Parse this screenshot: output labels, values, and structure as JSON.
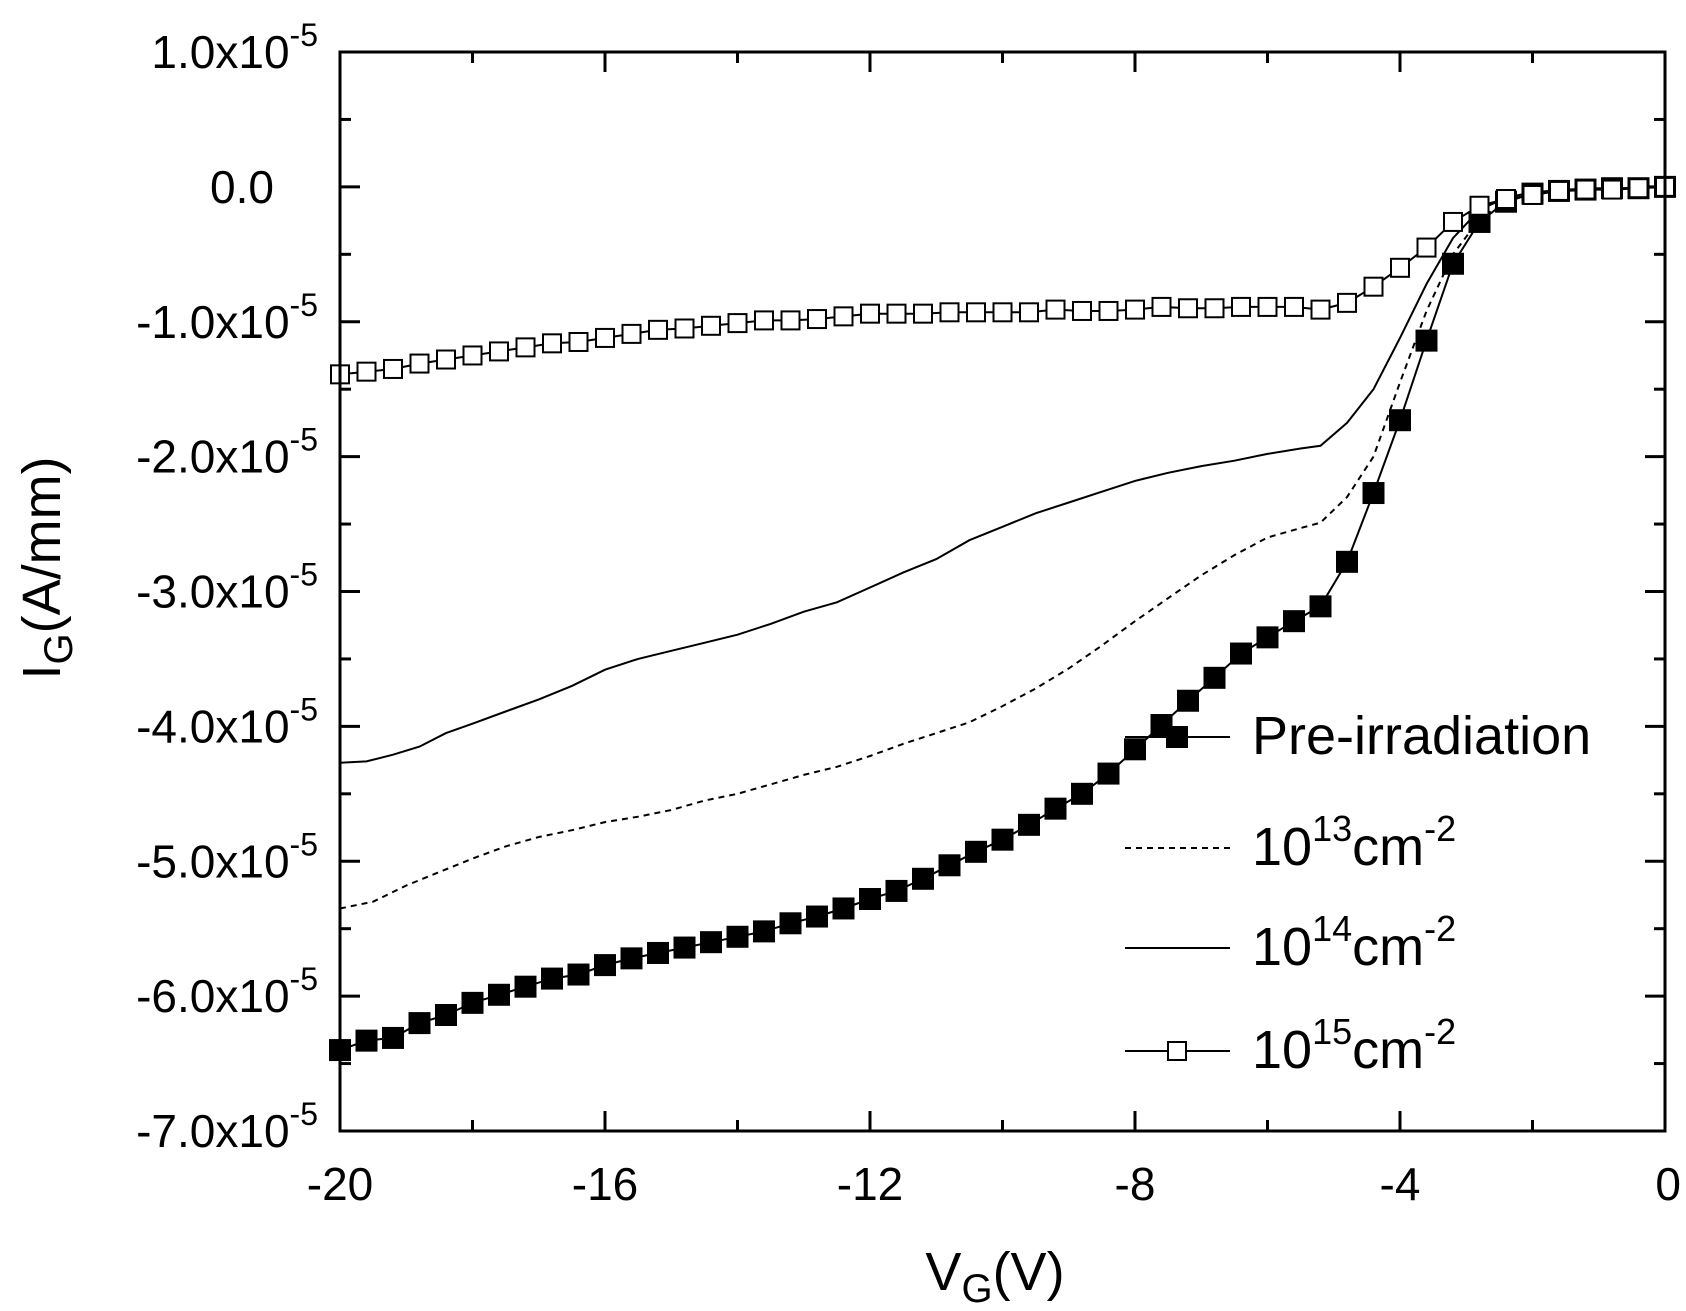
{
  "chart_data": {
    "type": "line",
    "title": "",
    "xlabel": {
      "main": "V",
      "sub": "G",
      "rest": "(V)"
    },
    "ylabel": {
      "main": "I",
      "sub": "G",
      "rest": "(A/mm)"
    },
    "xlim": [
      -20,
      0
    ],
    "ylim": [
      -7e-05,
      1e-05
    ],
    "x_ticks": [
      {
        "value": -20,
        "label": "-20"
      },
      {
        "value": -16,
        "label": "-16"
      },
      {
        "value": -12,
        "label": "-12"
      },
      {
        "value": -8,
        "label": "-8"
      },
      {
        "value": -4,
        "label": "-4"
      },
      {
        "value": 0,
        "label": "0"
      }
    ],
    "y_ticks": [
      {
        "value": 1e-05,
        "mantissa": "1.0x10",
        "exp": "-5"
      },
      {
        "value": 0,
        "mantissa": "0.0",
        "exp": ""
      },
      {
        "value": -1e-05,
        "mantissa": "-1.0x10",
        "exp": "-5"
      },
      {
        "value": -2e-05,
        "mantissa": "-2.0x10",
        "exp": "-5"
      },
      {
        "value": -3e-05,
        "mantissa": "-3.0x10",
        "exp": "-5"
      },
      {
        "value": -4e-05,
        "mantissa": "-4.0x10",
        "exp": "-5"
      },
      {
        "value": -5e-05,
        "mantissa": "-5.0x10",
        "exp": "-5"
      },
      {
        "value": -6e-05,
        "mantissa": "-6.0x10",
        "exp": "-5"
      },
      {
        "value": -7e-05,
        "mantissa": "-7.0x10",
        "exp": "-5"
      }
    ],
    "legend_position": "bottom-right",
    "series": [
      {
        "name": "Pre-irradiation",
        "legend": {
          "text": "Pre-irradiation",
          "base": "",
          "exp": "",
          "unit": ""
        },
        "style": "filled-square",
        "color": "#000000",
        "x": [
          -20,
          -19.6,
          -19.2,
          -18.8,
          -18.4,
          -18,
          -17.6,
          -17.2,
          -16.8,
          -16.4,
          -16,
          -15.6,
          -15.2,
          -14.8,
          -14.4,
          -14,
          -13.6,
          -13.2,
          -12.8,
          -12.4,
          -12,
          -11.6,
          -11.2,
          -10.8,
          -10.4,
          -10,
          -9.6,
          -9.2,
          -8.8,
          -8.4,
          -8,
          -7.6,
          -7.2,
          -6.8,
          -6.4,
          -6,
          -5.6,
          -5.2,
          -4.8,
          -4.4,
          -4,
          -3.6,
          -3.2,
          -2.8,
          -2.4,
          -2,
          -1.6,
          -1.2,
          -0.8,
          -0.4,
          0
        ],
        "y": [
          -6.4e-05,
          -6.33e-05,
          -6.31e-05,
          -6.2e-05,
          -6.14e-05,
          -6.05e-05,
          -5.99e-05,
          -5.93e-05,
          -5.87e-05,
          -5.84e-05,
          -5.77e-05,
          -5.72e-05,
          -5.68e-05,
          -5.64e-05,
          -5.6e-05,
          -5.56e-05,
          -5.52e-05,
          -5.46e-05,
          -5.41e-05,
          -5.35e-05,
          -5.28e-05,
          -5.22e-05,
          -5.13e-05,
          -5.03e-05,
          -4.93e-05,
          -4.84e-05,
          -4.73e-05,
          -4.61e-05,
          -4.5e-05,
          -4.35e-05,
          -4.17e-05,
          -3.99e-05,
          -3.81e-05,
          -3.64e-05,
          -3.46e-05,
          -3.34e-05,
          -3.22e-05,
          -3.11e-05,
          -2.78e-05,
          -2.27e-05,
          -1.73e-05,
          -1.14e-05,
          -5.7e-06,
          -2.6e-06,
          -1.1e-06,
          -5e-07,
          -3e-07,
          -2e-07,
          -1e-07,
          -1e-07,
          0
        ]
      },
      {
        "name": "10^13 cm^-2",
        "legend": {
          "text": "",
          "base": "10",
          "exp": "13",
          "unit": "cm",
          "unit_exp": "-2"
        },
        "style": "dashed",
        "color": "#000000",
        "x": [
          -20,
          -19.5,
          -19,
          -18.5,
          -18,
          -17.5,
          -17,
          -16.5,
          -16,
          -15.5,
          -15,
          -14.5,
          -14,
          -13.5,
          -13,
          -12.5,
          -12,
          -11.5,
          -11,
          -10.5,
          -10,
          -9.5,
          -9,
          -8.5,
          -8,
          -7.5,
          -7,
          -6.5,
          -6,
          -5.5,
          -5.2,
          -4.8,
          -4.4,
          -4,
          -3.6,
          -3.2,
          -2.8,
          -2.4,
          -2,
          -1.5,
          -1,
          -0.5,
          0
        ],
        "y": [
          -5.35e-05,
          -5.3e-05,
          -5.18e-05,
          -5.08e-05,
          -4.98e-05,
          -4.89e-05,
          -4.82e-05,
          -4.77e-05,
          -4.71e-05,
          -4.67e-05,
          -4.62e-05,
          -4.55e-05,
          -4.5e-05,
          -4.43e-05,
          -4.36e-05,
          -4.3e-05,
          -4.22e-05,
          -4.13e-05,
          -4.05e-05,
          -3.97e-05,
          -3.85e-05,
          -3.72e-05,
          -3.57e-05,
          -3.4e-05,
          -3.22e-05,
          -3.05e-05,
          -2.88e-05,
          -2.73e-05,
          -2.6e-05,
          -2.53e-05,
          -2.49e-05,
          -2.3e-05,
          -2e-05,
          -1.45e-05,
          -9.2e-06,
          -5e-06,
          -2.4e-06,
          -1.1e-06,
          -5e-07,
          -3e-07,
          -2e-07,
          -1e-07,
          0
        ]
      },
      {
        "name": "10^14 cm^-2",
        "legend": {
          "text": "",
          "base": "10",
          "exp": "14",
          "unit": "cm",
          "unit_exp": "-2"
        },
        "style": "solid",
        "color": "#000000",
        "x": [
          -20,
          -19.6,
          -19.2,
          -18.8,
          -18.4,
          -18,
          -17.5,
          -17,
          -16.5,
          -16,
          -15.5,
          -15,
          -14.5,
          -14,
          -13.5,
          -13,
          -12.5,
          -12,
          -11.5,
          -11,
          -10.5,
          -10,
          -9.5,
          -9,
          -8.5,
          -8,
          -7.5,
          -7,
          -6.5,
          -6,
          -5.5,
          -5.2,
          -4.8,
          -4.4,
          -4,
          -3.6,
          -3.2,
          -2.8,
          -2.4,
          -2,
          -1.5,
          -1,
          -0.5,
          0
        ],
        "y": [
          -4.27e-05,
          -4.26e-05,
          -4.21e-05,
          -4.15e-05,
          -4.05e-05,
          -3.98e-05,
          -3.89e-05,
          -3.8e-05,
          -3.7e-05,
          -3.58e-05,
          -3.5e-05,
          -3.44e-05,
          -3.38e-05,
          -3.32e-05,
          -3.24e-05,
          -3.15e-05,
          -3.08e-05,
          -2.97e-05,
          -2.86e-05,
          -2.76e-05,
          -2.62e-05,
          -2.52e-05,
          -2.42e-05,
          -2.34e-05,
          -2.26e-05,
          -2.18e-05,
          -2.12e-05,
          -2.07e-05,
          -2.03e-05,
          -1.98e-05,
          -1.94e-05,
          -1.92e-05,
          -1.75e-05,
          -1.5e-05,
          -1.12e-05,
          -7.2e-06,
          -3.8e-06,
          -1.7e-06,
          -8e-07,
          -4e-07,
          -2e-07,
          -1e-07,
          -1e-07,
          0
        ]
      },
      {
        "name": "10^15 cm^-2",
        "legend": {
          "text": "",
          "base": "10",
          "exp": "15",
          "unit": "cm",
          "unit_exp": "-2"
        },
        "style": "open-square",
        "color": "#000000",
        "x": [
          -20,
          -19.6,
          -19.2,
          -18.8,
          -18.4,
          -18,
          -17.6,
          -17.2,
          -16.8,
          -16.4,
          -16,
          -15.6,
          -15.2,
          -14.8,
          -14.4,
          -14,
          -13.6,
          -13.2,
          -12.8,
          -12.4,
          -12,
          -11.6,
          -11.2,
          -10.8,
          -10.4,
          -10,
          -9.6,
          -9.2,
          -8.8,
          -8.4,
          -8,
          -7.6,
          -7.2,
          -6.8,
          -6.4,
          -6,
          -5.6,
          -5.2,
          -4.8,
          -4.4,
          -4,
          -3.6,
          -3.2,
          -2.8,
          -2.4,
          -2,
          -1.6,
          -1.2,
          -0.8,
          -0.4,
          0
        ],
        "y": [
          -1.39e-05,
          -1.37e-05,
          -1.35e-05,
          -1.31e-05,
          -1.28e-05,
          -1.25e-05,
          -1.22e-05,
          -1.19e-05,
          -1.16e-05,
          -1.15e-05,
          -1.12e-05,
          -1.09e-05,
          -1.06e-05,
          -1.05e-05,
          -1.03e-05,
          -1.01e-05,
          -9.9e-06,
          -9.9e-06,
          -9.8e-06,
          -9.6e-06,
          -9.4e-06,
          -9.4e-06,
          -9.4e-06,
          -9.3e-06,
          -9.3e-06,
          -9.3e-06,
          -9.3e-06,
          -9.1e-06,
          -9.2e-06,
          -9.2e-06,
          -9.1e-06,
          -8.9e-06,
          -9e-06,
          -9e-06,
          -8.9e-06,
          -8.9e-06,
          -8.9e-06,
          -9.1e-06,
          -8.6e-06,
          -7.4e-06,
          -6e-06,
          -4.5e-06,
          -2.6e-06,
          -1.4e-06,
          -9e-07,
          -6e-07,
          -3e-07,
          -2e-07,
          -2e-07,
          -1e-07,
          0
        ]
      }
    ]
  }
}
